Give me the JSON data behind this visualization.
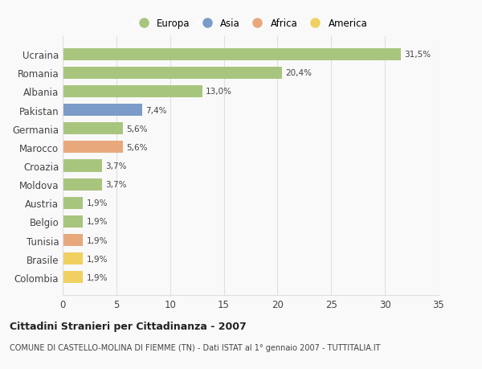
{
  "countries": [
    "Colombia",
    "Brasile",
    "Tunisia",
    "Belgio",
    "Austria",
    "Moldova",
    "Croazia",
    "Marocco",
    "Germania",
    "Pakistan",
    "Albania",
    "Romania",
    "Ucraina"
  ],
  "values": [
    1.9,
    1.9,
    1.9,
    1.9,
    1.9,
    3.7,
    3.7,
    5.6,
    5.6,
    7.4,
    13.0,
    20.4,
    31.5
  ],
  "labels": [
    "1,9%",
    "1,9%",
    "1,9%",
    "1,9%",
    "1,9%",
    "3,7%",
    "3,7%",
    "5,6%",
    "5,6%",
    "7,4%",
    "13,0%",
    "20,4%",
    "31,5%"
  ],
  "continents": [
    "America",
    "America",
    "Africa",
    "Europa",
    "Europa",
    "Europa",
    "Europa",
    "Africa",
    "Europa",
    "Asia",
    "Europa",
    "Europa",
    "Europa"
  ],
  "colors": {
    "Europa": "#a8c57e",
    "Asia": "#7b9bc8",
    "Africa": "#e8a87c",
    "America": "#f0d060"
  },
  "legend_order": [
    "Europa",
    "Asia",
    "Africa",
    "America"
  ],
  "title": "Cittadini Stranieri per Cittadinanza - 2007",
  "subtitle": "COMUNE DI CASTELLO-MOLINA DI FIEMME (TN) - Dati ISTAT al 1° gennaio 2007 - TUTTITALIA.IT",
  "xlim": [
    0,
    35
  ],
  "xticks": [
    0,
    5,
    10,
    15,
    20,
    25,
    30,
    35
  ],
  "background_color": "#f9f9f9",
  "bar_height": 0.65,
  "grid_color": "#e0e0e0",
  "text_color": "#444444"
}
